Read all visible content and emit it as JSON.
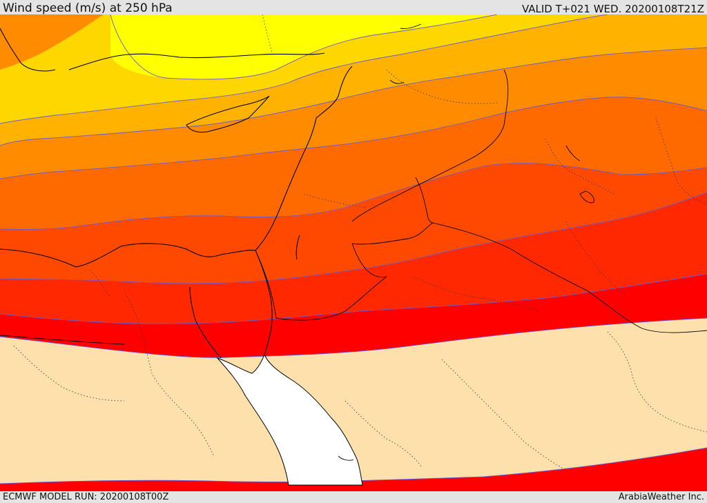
{
  "header": {
    "title": "Wind speed (m/s) at 250 hPa",
    "valid": "VALID T+021 WED. 20200108T21Z"
  },
  "footer": {
    "model_run": "ECMWF MODEL RUN: 20200108T00Z",
    "credit": "ArabiaWeather Inc."
  },
  "colors": {
    "band_1": "#ffff00",
    "band_2": "#ffd700",
    "band_3": "#ffb300",
    "band_4": "#ff8c00",
    "band_5": "#ff6a00",
    "band_6": "#ff4800",
    "band_7": "#ff2800",
    "band_8": "#ff0000",
    "below_threshold": "#fde0ac",
    "sea_masked": "#ffffff",
    "contour": "#6a5acd",
    "coastline": "#000000"
  }
}
